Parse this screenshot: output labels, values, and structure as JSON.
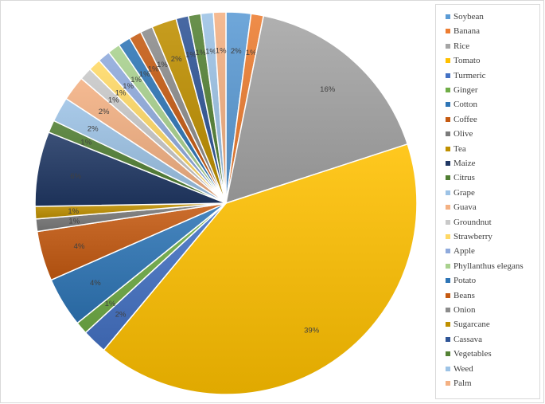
{
  "chart_data": {
    "type": "pie",
    "title": "",
    "slices": [
      {
        "label": "Soybean",
        "value": 2,
        "color": "#5B9BD5"
      },
      {
        "label": "Banana",
        "value": 1,
        "color": "#ED7D31"
      },
      {
        "label": "Rice",
        "value": 16,
        "color": "#A5A5A5"
      },
      {
        "label": "Tomato",
        "value": 39,
        "color": "#FFC000"
      },
      {
        "label": "Turmeric",
        "value": 2,
        "color": "#4472C4"
      },
      {
        "label": "Ginger",
        "value": 1,
        "color": "#70AD47"
      },
      {
        "label": "Cotton",
        "value": 4,
        "color": "#2E75B6"
      },
      {
        "label": "Coffee",
        "value": 4,
        "color": "#C55A11"
      },
      {
        "label": "Olive",
        "value": 1,
        "color": "#7B7B7B"
      },
      {
        "label": "Tea",
        "value": 1,
        "color": "#BF9000"
      },
      {
        "label": "Maize",
        "value": 6,
        "color": "#203864"
      },
      {
        "label": "Citrus",
        "value": 1,
        "color": "#507E32"
      },
      {
        "label": "Grape",
        "value": 2,
        "color": "#9DC3E6"
      },
      {
        "label": "Guava",
        "value": 2,
        "color": "#F4B183"
      },
      {
        "label": "Groundnut",
        "value": 1,
        "color": "#C9C9C9"
      },
      {
        "label": "Strawberry",
        "value": 1,
        "color": "#FFD966"
      },
      {
        "label": "Apple",
        "value": 1,
        "color": "#8FAADC"
      },
      {
        "label": "Phyllanthus elegans",
        "value": 1,
        "color": "#A9D18E"
      },
      {
        "label": "Potato",
        "value": 1,
        "color": "#2E75B6"
      },
      {
        "label": "Beans",
        "value": 1,
        "color": "#C55A11"
      },
      {
        "label": "Onion",
        "value": 1,
        "color": "#8C8C8C"
      },
      {
        "label": "Sugarcane",
        "value": 2,
        "color": "#BF9000"
      },
      {
        "label": "Cassava",
        "value": 1,
        "color": "#2F5597"
      },
      {
        "label": "Vegetables",
        "value": 1,
        "color": "#548235"
      },
      {
        "label": "Weed",
        "value": 1,
        "color": "#9DC3E6"
      },
      {
        "label": "Palm",
        "value": 1,
        "color": "#F4B183"
      }
    ],
    "value_suffix": "%",
    "legend_position": "right",
    "start": "top",
    "direction": "clockwise"
  }
}
